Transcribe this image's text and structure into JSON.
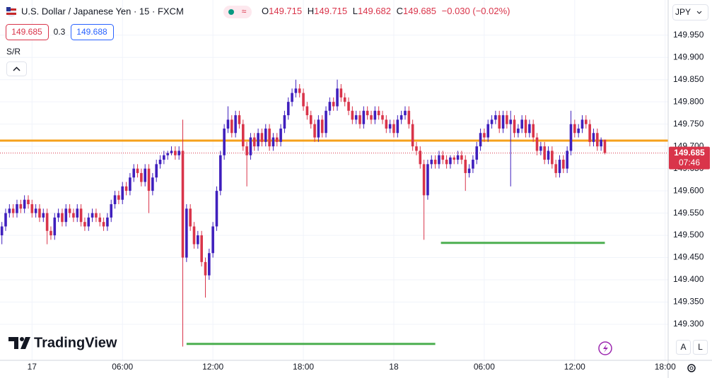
{
  "chart_data": {
    "type": "candlestick",
    "title": "U.S. Dollar / Japanese Yen · 15 · FXCM",
    "header": {
      "open_label": "O",
      "high_label": "H",
      "low_label": "L",
      "close_label": "C",
      "change": "−0.030 (−0.02%)",
      "bid": 149.685,
      "spread": 0.3,
      "ask": 149.688,
      "panel_label": "S/R",
      "currency": "JPY",
      "countdown": "07:46",
      "brand": "TradingView",
      "auto_button": "A",
      "log_button": "L"
    },
    "up_color": "#3f1fbd",
    "down_color": "#d9344a",
    "grid": true,
    "xlim": [
      -0.5,
      176.8
    ],
    "xticks": [
      {
        "value": 8,
        "label": "17"
      },
      {
        "value": 32,
        "label": "06:00"
      },
      {
        "value": 56,
        "label": "12:00"
      },
      {
        "value": 80,
        "label": "18:00"
      },
      {
        "value": 104,
        "label": "18"
      },
      {
        "value": 128,
        "label": "06:00"
      },
      {
        "value": 152,
        "label": "12:00"
      },
      {
        "value": 176,
        "label": "18:00"
      }
    ],
    "ylim": [
      149.219,
      150.029
    ],
    "yticks": [
      {
        "value": 149.3,
        "label": "149.300"
      },
      {
        "value": 149.35,
        "label": "149.350"
      },
      {
        "value": 149.4,
        "label": "149.400"
      },
      {
        "value": 149.45,
        "label": "149.450"
      },
      {
        "value": 149.5,
        "label": "149.500"
      },
      {
        "value": 149.55,
        "label": "149.550"
      },
      {
        "value": 149.6,
        "label": "149.600"
      },
      {
        "value": 149.65,
        "label": "149.650"
      },
      {
        "value": 149.7,
        "label": "149.700"
      },
      {
        "value": 149.75,
        "label": "149.750"
      },
      {
        "value": 149.8,
        "label": "149.800"
      },
      {
        "value": 149.85,
        "label": "149.850"
      },
      {
        "value": 149.9,
        "label": "149.900"
      },
      {
        "value": 149.95,
        "label": "149.950"
      }
    ],
    "levels": [
      {
        "value": 149.713,
        "color": "#f5a11c",
        "x": [
          -0.5,
          176.8
        ]
      },
      {
        "value": 149.256,
        "color": "#4caf50",
        "x": [
          49,
          115
        ]
      },
      {
        "value": 149.483,
        "color": "#4caf50",
        "x": [
          116.5,
          160
        ]
      }
    ],
    "candles": [
      [
        149.5,
        149.53,
        149.48,
        149.52
      ],
      [
        149.52,
        149.56,
        149.51,
        149.55
      ],
      [
        149.55,
        149.57,
        149.54,
        149.56
      ],
      [
        149.56,
        149.57,
        149.54,
        149.55
      ],
      [
        149.55,
        149.58,
        149.54,
        149.57
      ],
      [
        149.57,
        149.58,
        149.55,
        149.56
      ],
      [
        149.56,
        149.59,
        149.55,
        149.58
      ],
      [
        149.58,
        149.59,
        149.56,
        149.57
      ],
      [
        149.57,
        149.58,
        149.54,
        149.55
      ],
      [
        149.55,
        149.57,
        149.54,
        149.56
      ],
      [
        149.56,
        149.57,
        149.53,
        149.54
      ],
      [
        149.54,
        149.56,
        149.53,
        149.55
      ],
      [
        149.55,
        149.56,
        149.48,
        149.51
      ],
      [
        149.51,
        149.52,
        149.49,
        149.5
      ],
      [
        149.5,
        149.55,
        149.49,
        149.54
      ],
      [
        149.54,
        149.56,
        149.53,
        149.55
      ],
      [
        149.55,
        149.56,
        149.52,
        149.53
      ],
      [
        149.53,
        149.57,
        149.52,
        149.56
      ],
      [
        149.56,
        149.57,
        149.54,
        149.55
      ],
      [
        149.55,
        149.56,
        149.53,
        149.54
      ],
      [
        149.54,
        149.57,
        149.53,
        149.56
      ],
      [
        149.56,
        149.57,
        149.52,
        149.53
      ],
      [
        149.53,
        149.54,
        149.51,
        149.52
      ],
      [
        149.52,
        149.55,
        149.51,
        149.54
      ],
      [
        149.54,
        149.56,
        149.53,
        149.55
      ],
      [
        149.55,
        149.56,
        149.53,
        149.54
      ],
      [
        149.54,
        149.55,
        149.52,
        149.53
      ],
      [
        149.53,
        149.54,
        149.51,
        149.52
      ],
      [
        149.52,
        149.55,
        149.51,
        149.54
      ],
      [
        149.54,
        149.58,
        149.53,
        149.57
      ],
      [
        149.57,
        149.6,
        149.56,
        149.59
      ],
      [
        149.59,
        149.6,
        149.57,
        149.58
      ],
      [
        149.58,
        149.62,
        149.57,
        149.61
      ],
      [
        149.61,
        149.62,
        149.59,
        149.6
      ],
      [
        149.6,
        149.64,
        149.59,
        149.63
      ],
      [
        149.63,
        149.66,
        149.62,
        149.65
      ],
      [
        149.65,
        149.66,
        149.63,
        149.64
      ],
      [
        149.64,
        149.65,
        149.61,
        149.62
      ],
      [
        149.62,
        149.66,
        149.61,
        149.65
      ],
      [
        149.65,
        149.66,
        149.55,
        149.6
      ],
      [
        149.6,
        149.64,
        149.59,
        149.63
      ],
      [
        149.63,
        149.67,
        149.62,
        149.66
      ],
      [
        149.66,
        149.68,
        149.65,
        149.67
      ],
      [
        149.67,
        149.69,
        149.66,
        149.68
      ],
      [
        149.68,
        149.69,
        149.67,
        149.685
      ],
      [
        149.685,
        149.7,
        149.68,
        149.69
      ],
      [
        149.69,
        149.7,
        149.67,
        149.68
      ],
      [
        149.68,
        149.7,
        149.67,
        149.69
      ],
      [
        149.69,
        149.76,
        149.25,
        149.45
      ],
      [
        149.45,
        149.57,
        149.44,
        149.56
      ],
      [
        149.56,
        149.57,
        149.51,
        149.52
      ],
      [
        149.52,
        149.53,
        149.47,
        149.48
      ],
      [
        149.48,
        149.51,
        149.47,
        149.5
      ],
      [
        149.5,
        149.51,
        149.43,
        149.44
      ],
      [
        149.44,
        149.45,
        149.36,
        149.41
      ],
      [
        149.41,
        149.47,
        149.4,
        149.46
      ],
      [
        149.46,
        149.53,
        149.45,
        149.52
      ],
      [
        149.52,
        149.61,
        149.51,
        149.6
      ],
      [
        149.6,
        149.69,
        149.59,
        149.68
      ],
      [
        149.68,
        149.75,
        149.67,
        149.74
      ],
      [
        149.74,
        149.79,
        149.73,
        149.76
      ],
      [
        149.76,
        149.77,
        149.72,
        149.73
      ],
      [
        149.73,
        149.78,
        149.72,
        149.77
      ],
      [
        149.77,
        149.78,
        149.74,
        149.75
      ],
      [
        149.75,
        149.76,
        149.69,
        149.7
      ],
      [
        149.7,
        149.71,
        149.61,
        149.68
      ],
      [
        149.68,
        149.73,
        149.67,
        149.72
      ],
      [
        149.72,
        149.73,
        149.69,
        149.7
      ],
      [
        149.7,
        149.74,
        149.69,
        149.73
      ],
      [
        149.73,
        149.74,
        149.7,
        149.71
      ],
      [
        149.71,
        149.75,
        149.7,
        149.74
      ],
      [
        149.74,
        149.75,
        149.69,
        149.7
      ],
      [
        149.7,
        149.73,
        149.69,
        149.72
      ],
      [
        149.72,
        149.73,
        149.7,
        149.71
      ],
      [
        149.71,
        149.75,
        149.7,
        149.74
      ],
      [
        149.74,
        149.78,
        149.73,
        149.77
      ],
      [
        149.77,
        149.81,
        149.76,
        149.8
      ],
      [
        149.8,
        149.83,
        149.79,
        149.82
      ],
      [
        149.82,
        149.85,
        149.81,
        149.83
      ],
      [
        149.83,
        149.84,
        149.81,
        149.82
      ],
      [
        149.82,
        149.83,
        149.78,
        149.79
      ],
      [
        149.79,
        149.8,
        149.76,
        149.77
      ],
      [
        149.77,
        149.78,
        149.74,
        149.75
      ],
      [
        149.75,
        149.76,
        149.71,
        149.72
      ],
      [
        149.72,
        149.77,
        149.71,
        149.76
      ],
      [
        149.76,
        149.77,
        149.72,
        149.73
      ],
      [
        149.73,
        149.79,
        149.72,
        149.78
      ],
      [
        149.78,
        149.81,
        149.77,
        149.8
      ],
      [
        149.8,
        149.81,
        149.78,
        149.79
      ],
      [
        149.79,
        149.85,
        149.78,
        149.83
      ],
      [
        149.83,
        149.84,
        149.8,
        149.81
      ],
      [
        149.81,
        149.82,
        149.79,
        149.8
      ],
      [
        149.8,
        149.81,
        149.77,
        149.78
      ],
      [
        149.78,
        149.79,
        149.75,
        149.76
      ],
      [
        149.76,
        149.78,
        149.75,
        149.77
      ],
      [
        149.77,
        149.78,
        149.74,
        149.75
      ],
      [
        149.75,
        149.79,
        149.74,
        149.78
      ],
      [
        149.78,
        149.79,
        149.76,
        149.77
      ],
      [
        149.77,
        149.78,
        149.75,
        149.76
      ],
      [
        149.76,
        149.79,
        149.75,
        149.78
      ],
      [
        149.78,
        149.79,
        149.76,
        149.77
      ],
      [
        149.77,
        149.78,
        149.75,
        149.76
      ],
      [
        149.76,
        149.77,
        149.73,
        149.74
      ],
      [
        149.74,
        149.76,
        149.73,
        149.75
      ],
      [
        149.75,
        149.76,
        149.72,
        149.73
      ],
      [
        149.73,
        149.77,
        149.72,
        149.76
      ],
      [
        149.76,
        149.78,
        149.75,
        149.77
      ],
      [
        149.77,
        149.79,
        149.76,
        149.78
      ],
      [
        149.78,
        149.79,
        149.74,
        149.75
      ],
      [
        149.75,
        149.76,
        149.69,
        149.7
      ],
      [
        149.7,
        149.71,
        149.68,
        149.69
      ],
      [
        149.69,
        149.7,
        149.65,
        149.66
      ],
      [
        149.66,
        149.67,
        149.49,
        149.59
      ],
      [
        149.59,
        149.67,
        149.58,
        149.66
      ],
      [
        149.66,
        149.68,
        149.65,
        149.67
      ],
      [
        149.67,
        149.68,
        149.65,
        149.66
      ],
      [
        149.66,
        149.69,
        149.65,
        149.68
      ],
      [
        149.68,
        149.69,
        149.66,
        149.67
      ],
      [
        149.67,
        149.68,
        149.65,
        149.66
      ],
      [
        149.66,
        149.68,
        149.65,
        149.675
      ],
      [
        149.675,
        149.68,
        149.66,
        149.67
      ],
      [
        149.67,
        149.69,
        149.66,
        149.68
      ],
      [
        149.68,
        149.69,
        149.66,
        149.67
      ],
      [
        149.67,
        149.68,
        149.6,
        149.64
      ],
      [
        149.64,
        149.66,
        149.63,
        149.65
      ],
      [
        149.65,
        149.68,
        149.64,
        149.67
      ],
      [
        149.67,
        149.71,
        149.66,
        149.7
      ],
      [
        149.7,
        149.74,
        149.69,
        149.73
      ],
      [
        149.73,
        149.74,
        149.71,
        149.72
      ],
      [
        149.72,
        149.76,
        149.71,
        149.75
      ],
      [
        149.75,
        149.77,
        149.74,
        149.76
      ],
      [
        149.76,
        149.78,
        149.75,
        149.77
      ],
      [
        149.77,
        149.78,
        149.73,
        149.74
      ],
      [
        149.74,
        149.78,
        149.73,
        149.77
      ],
      [
        149.77,
        149.78,
        149.74,
        149.75
      ],
      [
        149.75,
        149.78,
        149.61,
        149.76
      ],
      [
        149.76,
        149.77,
        149.72,
        149.73
      ],
      [
        149.73,
        149.75,
        149.72,
        149.74
      ],
      [
        149.74,
        149.77,
        149.73,
        149.76
      ],
      [
        149.76,
        149.77,
        149.72,
        149.73
      ],
      [
        149.73,
        149.76,
        149.72,
        149.75
      ],
      [
        149.75,
        149.76,
        149.71,
        149.72
      ],
      [
        149.72,
        149.73,
        149.68,
        149.69
      ],
      [
        149.69,
        149.71,
        149.68,
        149.7
      ],
      [
        149.7,
        149.71,
        149.66,
        149.67
      ],
      [
        149.67,
        149.7,
        149.66,
        149.69
      ],
      [
        149.69,
        149.7,
        149.65,
        149.66
      ],
      [
        149.66,
        149.67,
        149.63,
        149.64
      ],
      [
        149.64,
        149.68,
        149.63,
        149.67
      ],
      [
        149.67,
        149.68,
        149.64,
        149.65
      ],
      [
        149.65,
        149.7,
        149.64,
        149.69
      ],
      [
        149.69,
        149.78,
        149.68,
        149.75
      ],
      [
        149.75,
        149.76,
        149.72,
        149.73
      ],
      [
        149.73,
        149.75,
        149.72,
        149.74
      ],
      [
        149.74,
        149.77,
        149.73,
        149.76
      ],
      [
        149.76,
        149.77,
        149.74,
        149.75
      ],
      [
        149.75,
        149.76,
        149.7,
        149.71
      ],
      [
        149.71,
        149.74,
        149.7,
        149.73
      ],
      [
        149.73,
        149.74,
        149.69,
        149.7
      ],
      [
        149.7,
        149.72,
        149.69,
        149.715
      ],
      [
        149.715,
        149.715,
        149.682,
        149.685
      ]
    ]
  }
}
